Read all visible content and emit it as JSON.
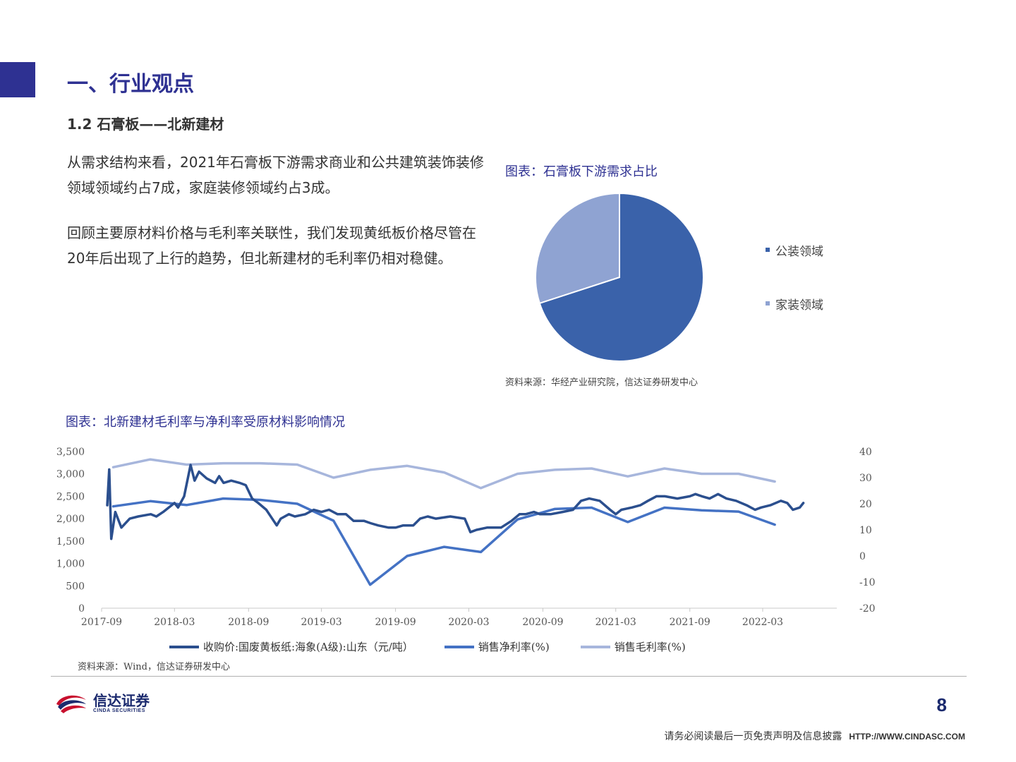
{
  "header": {
    "section_title": "一、行业观点",
    "sub_title": "1.2 石膏板——北新建材"
  },
  "paragraphs": {
    "p1": "从需求结构来看，2021年石膏板下游需求商业和公共建筑装饰装修领域领域约占7成，家庭装修领域约占3成。",
    "p2": "回顾主要原材料价格与毛利率关联性，我们发现黄纸板价格尽管在20年后出现了上行的趋势，但北新建材的毛利率仍相对稳健。"
  },
  "pie_figure": {
    "caption": "图表：石膏板下游需求占比",
    "source": "资料来源：华经产业研究院，信达证券研发中心"
  },
  "line_figure": {
    "caption": "图表：北新建材毛利率与净利率受原材料影响情况",
    "source": "资料来源：Wind，信达证券研发中心"
  },
  "chart_data": [
    {
      "type": "pie",
      "categories": [
        "公装领域",
        "家装领域"
      ],
      "values": [
        70,
        30
      ],
      "colors": [
        "#3a62aa",
        "#8fa3d2"
      ],
      "legend": "right"
    },
    {
      "type": "line",
      "x": [
        "2017-09",
        "2017-12",
        "2018-03",
        "2018-06",
        "2018-09",
        "2018-12",
        "2019-03",
        "2019-06",
        "2019-09",
        "2019-12",
        "2020-03",
        "2020-06",
        "2020-09",
        "2020-12",
        "2021-03",
        "2021-06",
        "2021-09",
        "2021-12",
        "2022-03"
      ],
      "x_tick_labels": [
        "2017-09",
        "2018-03",
        "2018-09",
        "2019-03",
        "2019-09",
        "2020-03",
        "2020-09",
        "2021-03",
        "2021-09",
        "2022-03"
      ],
      "y_left_ticks": [
        "0",
        "500",
        "1,000",
        "1,500",
        "2,000",
        "2,500",
        "3,000",
        "3,500"
      ],
      "y_right_ticks": [
        "-20",
        "-10",
        "0",
        "10",
        "20",
        "30",
        "40"
      ],
      "ylim_left": [
        0,
        3500
      ],
      "ylim_right": [
        -20,
        40
      ],
      "legend": "bottom",
      "series": [
        {
          "name": "收购价:国废黄板纸:海象(A级):山东（元/吨）",
          "axis": "left",
          "color": "#2b4f8e",
          "points": [
            [
              "2017-09-15",
              2300
            ],
            [
              "2017-09-20",
              3100
            ],
            [
              "2017-09-25",
              1550
            ],
            [
              "2017-10-05",
              2150
            ],
            [
              "2017-10-20",
              1800
            ],
            [
              "2017-11-10",
              2000
            ],
            [
              "2017-12-01",
              2050
            ],
            [
              "2018-01-01",
              2100
            ],
            [
              "2018-01-15",
              2050
            ],
            [
              "2018-02-01",
              2150
            ],
            [
              "2018-03-01",
              2350
            ],
            [
              "2018-03-10",
              2250
            ],
            [
              "2018-03-25",
              2500
            ],
            [
              "2018-04-10",
              3200
            ],
            [
              "2018-04-20",
              2850
            ],
            [
              "2018-05-01",
              3050
            ],
            [
              "2018-05-20",
              2900
            ],
            [
              "2018-06-10",
              2800
            ],
            [
              "2018-06-20",
              2950
            ],
            [
              "2018-07-01",
              2800
            ],
            [
              "2018-07-20",
              2850
            ],
            [
              "2018-08-10",
              2800
            ],
            [
              "2018-08-25",
              2750
            ],
            [
              "2018-09-10",
              2450
            ],
            [
              "2018-09-25",
              2350
            ],
            [
              "2018-10-15",
              2200
            ],
            [
              "2018-11-10",
              1850
            ],
            [
              "2018-11-20",
              2000
            ],
            [
              "2018-12-10",
              2100
            ],
            [
              "2018-12-25",
              2050
            ],
            [
              "2019-01-20",
              2100
            ],
            [
              "2019-02-10",
              2200
            ],
            [
              "2019-03-01",
              2150
            ],
            [
              "2019-03-20",
              2200
            ],
            [
              "2019-04-10",
              2100
            ],
            [
              "2019-05-01",
              2100
            ],
            [
              "2019-05-20",
              1950
            ],
            [
              "2019-06-15",
              1950
            ],
            [
              "2019-07-01",
              1900
            ],
            [
              "2019-07-20",
              1850
            ],
            [
              "2019-08-15",
              1800
            ],
            [
              "2019-09-01",
              1800
            ],
            [
              "2019-09-20",
              1850
            ],
            [
              "2019-10-15",
              1850
            ],
            [
              "2019-11-01",
              2000
            ],
            [
              "2019-11-20",
              2050
            ],
            [
              "2019-12-10",
              2000
            ],
            [
              "2020-01-15",
              2050
            ],
            [
              "2020-02-20",
              2000
            ],
            [
              "2020-03-05",
              1700
            ],
            [
              "2020-03-20",
              1750
            ],
            [
              "2020-04-15",
              1800
            ],
            [
              "2020-05-20",
              1800
            ],
            [
              "2020-06-15",
              1950
            ],
            [
              "2020-07-05",
              2100
            ],
            [
              "2020-07-20",
              2100
            ],
            [
              "2020-08-10",
              2150
            ],
            [
              "2020-08-25",
              2100
            ],
            [
              "2020-09-20",
              2100
            ],
            [
              "2020-10-20",
              2150
            ],
            [
              "2020-11-15",
              2200
            ],
            [
              "2020-12-05",
              2400
            ],
            [
              "2020-12-25",
              2450
            ],
            [
              "2021-01-20",
              2400
            ],
            [
              "2021-02-15",
              2200
            ],
            [
              "2021-03-01",
              2100
            ],
            [
              "2021-03-15",
              2200
            ],
            [
              "2021-04-10",
              2250
            ],
            [
              "2021-05-01",
              2300
            ],
            [
              "2021-05-20",
              2400
            ],
            [
              "2021-06-10",
              2500
            ],
            [
              "2021-07-01",
              2500
            ],
            [
              "2021-08-01",
              2450
            ],
            [
              "2021-09-01",
              2500
            ],
            [
              "2021-09-15",
              2550
            ],
            [
              "2021-10-01",
              2500
            ],
            [
              "2021-10-20",
              2450
            ],
            [
              "2021-11-10",
              2550
            ],
            [
              "2021-12-01",
              2450
            ],
            [
              "2021-12-25",
              2400
            ],
            [
              "2022-01-20",
              2300
            ],
            [
              "2022-02-10",
              2200
            ],
            [
              "2022-02-25",
              2250
            ],
            [
              "2022-03-20",
              2300
            ],
            [
              "2022-04-15",
              2400
            ],
            [
              "2022-05-01",
              2350
            ],
            [
              "2022-05-15",
              2200
            ],
            [
              "2022-06-01",
              2250
            ],
            [
              "2022-06-10",
              2350
            ]
          ]
        },
        {
          "name": "销售净利率(%)",
          "axis": "right",
          "color": "#4472c4",
          "points": [
            [
              "2017-09-30",
              19
            ],
            [
              "2017-12-31",
              21
            ],
            [
              "2018-03-31",
              19.5
            ],
            [
              "2018-06-30",
              22
            ],
            [
              "2018-09-30",
              21.5
            ],
            [
              "2018-12-31",
              20
            ],
            [
              "2019-03-31",
              13.5
            ],
            [
              "2019-06-30",
              -11
            ],
            [
              "2019-09-30",
              0
            ],
            [
              "2019-12-31",
              3.5
            ],
            [
              "2020-03-31",
              1.5
            ],
            [
              "2020-06-30",
              14
            ],
            [
              "2020-09-30",
              18
            ],
            [
              "2020-12-31",
              18.5
            ],
            [
              "2021-03-31",
              13
            ],
            [
              "2021-06-30",
              18.5
            ],
            [
              "2021-09-30",
              17.5
            ],
            [
              "2021-12-31",
              17
            ],
            [
              "2022-03-31",
              12
            ]
          ]
        },
        {
          "name": "销售毛利率(%)",
          "axis": "right",
          "color": "#a7b6dc",
          "points": [
            [
              "2017-09-30",
              34
            ],
            [
              "2017-12-31",
              37
            ],
            [
              "2018-03-31",
              35
            ],
            [
              "2018-06-30",
              35.5
            ],
            [
              "2018-09-30",
              35.5
            ],
            [
              "2018-12-31",
              35
            ],
            [
              "2019-03-31",
              30
            ],
            [
              "2019-06-30",
              33
            ],
            [
              "2019-09-30",
              34.5
            ],
            [
              "2019-12-31",
              32
            ],
            [
              "2020-03-31",
              26
            ],
            [
              "2020-06-30",
              31.5
            ],
            [
              "2020-09-30",
              33
            ],
            [
              "2020-12-31",
              33.5
            ],
            [
              "2021-03-31",
              30.5
            ],
            [
              "2021-06-30",
              33.5
            ],
            [
              "2021-09-30",
              31.5
            ],
            [
              "2021-12-31",
              31.5
            ],
            [
              "2022-03-31",
              28.5
            ]
          ]
        }
      ]
    }
  ],
  "footer": {
    "logo_cn": "信达证券",
    "logo_en": "CINDA SECURITIES",
    "page_number": "8",
    "disclaimer": "请务必阅读最后一页免责声明及信息披露",
    "url": "HTTP://WWW.CINDASC.COM"
  }
}
